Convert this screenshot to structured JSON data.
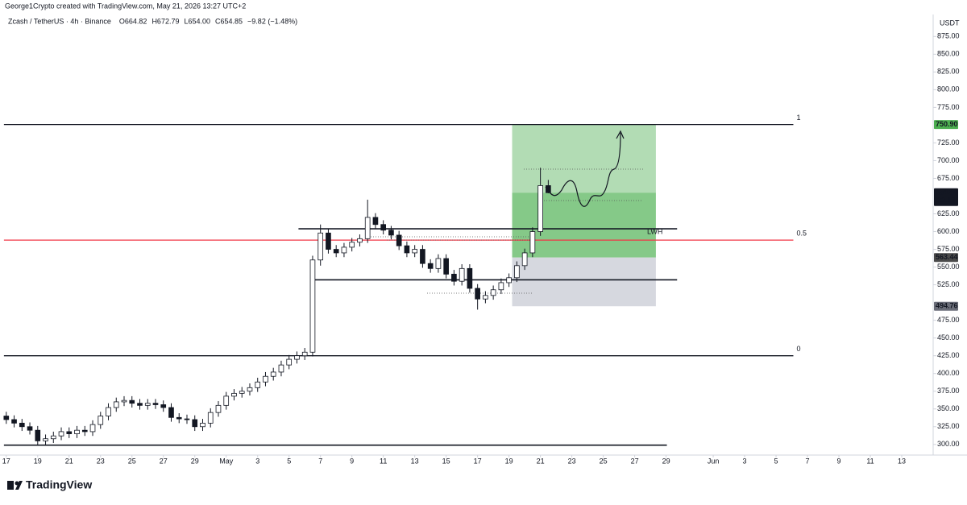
{
  "header": {
    "author_line": "George1Crypto created with TradingView.com, May 21, 2026 13:27 UTC+2"
  },
  "footer": {
    "brand": "TradingView"
  },
  "chart_data": {
    "type": "candlestick",
    "title": "Zcash / TetherUS · 4h · Binance",
    "readout": [
      "O664.82",
      "H672.79",
      "L654.00",
      "C654.85",
      "−9.82 (−1.48%)"
    ],
    "y_unit": "USDT",
    "up_color": "#ffffff",
    "down_color": "#131722",
    "x": [
      0,
      0.5,
      1,
      1.5,
      2,
      2.5,
      3,
      3.5,
      4,
      4.5,
      5,
      5.5,
      6,
      6.5,
      7,
      7.5,
      8,
      8.5,
      9,
      9.5,
      10,
      10.5,
      11,
      11.5,
      12,
      12.5,
      13,
      13.5,
      14,
      14.5,
      15,
      15.5,
      16,
      16.5,
      17,
      17.5,
      18,
      18.5,
      19,
      19.5,
      20,
      20.5,
      21,
      21.5,
      22,
      22.5,
      23,
      23.5,
      24,
      24.5,
      25,
      25.5,
      26,
      26.5,
      27,
      27.5,
      28,
      28.5,
      29,
      29.5,
      30,
      30.5,
      31,
      31.5,
      32,
      32.5,
      33,
      33.5,
      34,
      34.5
    ],
    "open": [
      340,
      335,
      330,
      325,
      320,
      305,
      308,
      312,
      318,
      315,
      320,
      318,
      328,
      340,
      352,
      360,
      362,
      358,
      355,
      358,
      356,
      352,
      338,
      336,
      335,
      325,
      330,
      345,
      355,
      368,
      372,
      375,
      380,
      388,
      396,
      402,
      412,
      420,
      425,
      430,
      560,
      598,
      575,
      570,
      578,
      585,
      590,
      620,
      610,
      602,
      595,
      580,
      570,
      575,
      555,
      548,
      562,
      540,
      530,
      548,
      520,
      505,
      510,
      518,
      528,
      535,
      552,
      570,
      600,
      664.82
    ],
    "high": [
      346,
      341,
      336,
      331,
      326,
      314,
      318,
      324,
      324,
      326,
      326,
      334,
      346,
      358,
      366,
      368,
      368,
      364,
      364,
      364,
      362,
      358,
      344,
      342,
      341,
      336,
      351,
      361,
      374,
      378,
      381,
      386,
      394,
      402,
      408,
      418,
      426,
      431,
      436,
      566,
      610,
      604,
      581,
      584,
      591,
      596,
      645,
      626,
      616,
      608,
      601,
      586,
      581,
      581,
      561,
      568,
      568,
      546,
      554,
      554,
      526,
      516,
      524,
      534,
      541,
      558,
      576,
      606,
      690,
      672.79
    ],
    "low": [
      329,
      324,
      319,
      314,
      299,
      299,
      302,
      306,
      309,
      309,
      312,
      312,
      322,
      334,
      346,
      354,
      352,
      349,
      349,
      350,
      346,
      332,
      330,
      329,
      319,
      319,
      324,
      339,
      349,
      362,
      366,
      369,
      374,
      382,
      390,
      396,
      406,
      414,
      419,
      424,
      552,
      569,
      564,
      564,
      572,
      579,
      584,
      604,
      596,
      589,
      574,
      564,
      564,
      549,
      542,
      542,
      534,
      524,
      524,
      514,
      490,
      499,
      504,
      512,
      522,
      529,
      546,
      564,
      594,
      654.0
    ],
    "close": [
      335,
      330,
      325,
      320,
      305,
      308,
      312,
      318,
      315,
      320,
      318,
      328,
      340,
      352,
      360,
      362,
      358,
      355,
      358,
      356,
      352,
      338,
      336,
      335,
      325,
      330,
      345,
      355,
      368,
      372,
      375,
      380,
      388,
      396,
      402,
      412,
      420,
      425,
      430,
      560,
      598,
      575,
      570,
      578,
      585,
      590,
      620,
      610,
      602,
      595,
      580,
      570,
      575,
      555,
      548,
      562,
      540,
      530,
      548,
      520,
      505,
      510,
      518,
      528,
      535,
      552,
      570,
      600,
      664.82,
      654.85
    ],
    "xlim": [
      -0.4,
      59
    ],
    "ylim": [
      285,
      906
    ],
    "xticks": [
      {
        "value": 0,
        "label": "17"
      },
      {
        "value": 2,
        "label": "19"
      },
      {
        "value": 4,
        "label": "21"
      },
      {
        "value": 6,
        "label": "23"
      },
      {
        "value": 8,
        "label": "25"
      },
      {
        "value": 10,
        "label": "27"
      },
      {
        "value": 12,
        "label": "29"
      },
      {
        "value": 14,
        "label": "May"
      },
      {
        "value": 16,
        "label": "3"
      },
      {
        "value": 18,
        "label": "5"
      },
      {
        "value": 20,
        "label": "7"
      },
      {
        "value": 22,
        "label": "9"
      },
      {
        "value": 24,
        "label": "11"
      },
      {
        "value": 26,
        "label": "13"
      },
      {
        "value": 28,
        "label": "15"
      },
      {
        "value": 30,
        "label": "17"
      },
      {
        "value": 32,
        "label": "19"
      },
      {
        "value": 34,
        "label": "21"
      },
      {
        "value": 36,
        "label": "23"
      },
      {
        "value": 38,
        "label": "25"
      },
      {
        "value": 40,
        "label": "27"
      },
      {
        "value": 42,
        "label": "29"
      },
      {
        "value": 45,
        "label": "Jun"
      },
      {
        "value": 47,
        "label": "3"
      },
      {
        "value": 49,
        "label": "5"
      },
      {
        "value": 51,
        "label": "7"
      },
      {
        "value": 53,
        "label": "9"
      },
      {
        "value": 55,
        "label": "11"
      },
      {
        "value": 57,
        "label": "13"
      }
    ],
    "yticks": [
      {
        "value": 300,
        "label": "300.00"
      },
      {
        "value": 325,
        "label": "325.00"
      },
      {
        "value": 350,
        "label": "350.00"
      },
      {
        "value": 375,
        "label": "375.00"
      },
      {
        "value": 400,
        "label": "400.00"
      },
      {
        "value": 425,
        "label": "425.00"
      },
      {
        "value": 450,
        "label": "450.00"
      },
      {
        "value": 475,
        "label": "475.00"
      },
      {
        "value": 525,
        "label": "525.00"
      },
      {
        "value": 550,
        "label": "550.00"
      },
      {
        "value": 575,
        "label": "575.00"
      },
      {
        "value": 600,
        "label": "600.00"
      },
      {
        "value": 625,
        "label": "625.00"
      },
      {
        "value": 675,
        "label": "675.00"
      },
      {
        "value": 700,
        "label": "700.00"
      },
      {
        "value": 725,
        "label": "725.00"
      },
      {
        "value": 775,
        "label": "775.00"
      },
      {
        "value": 800,
        "label": "800.00"
      },
      {
        "value": 825,
        "label": "825.00"
      },
      {
        "value": 850,
        "label": "850.00"
      },
      {
        "value": 875,
        "label": "875.00"
      }
    ],
    "fib_levels": [
      {
        "label": "1",
        "value": 750.9,
        "color": "#131722",
        "from": -0.15,
        "to": 50.1
      },
      {
        "label": "0.5",
        "value": 588,
        "color": "#f23645",
        "from": -0.15,
        "to": 50.1
      },
      {
        "label": "0",
        "value": 425,
        "color": "#131722",
        "from": -0.15,
        "to": 50.1
      }
    ],
    "lines": [
      {
        "value": 299,
        "from": -0.15,
        "to": 42.05
      },
      {
        "value": 604,
        "from": 18.6,
        "to": 42.7
      },
      {
        "value": 532,
        "from": 19.5,
        "to": 42.7
      }
    ],
    "line_note": "LWH",
    "position": {
      "from": 32.2,
      "to": 41.35,
      "target": 750.9,
      "current": 654.85,
      "entry": 563.44,
      "stop": 494.76
    },
    "price_labels": [
      {
        "value": 750.9,
        "label": "750.90",
        "color": "#4caf50"
      },
      {
        "value": 654.85,
        "label": "654.85",
        "color": "#131722",
        "sub": "32:13"
      },
      {
        "value": 563.44,
        "label": "563.44",
        "color": "#4a4a4a"
      },
      {
        "value": 494.76,
        "label": "494.76",
        "color": "#6a6d78"
      }
    ]
  }
}
